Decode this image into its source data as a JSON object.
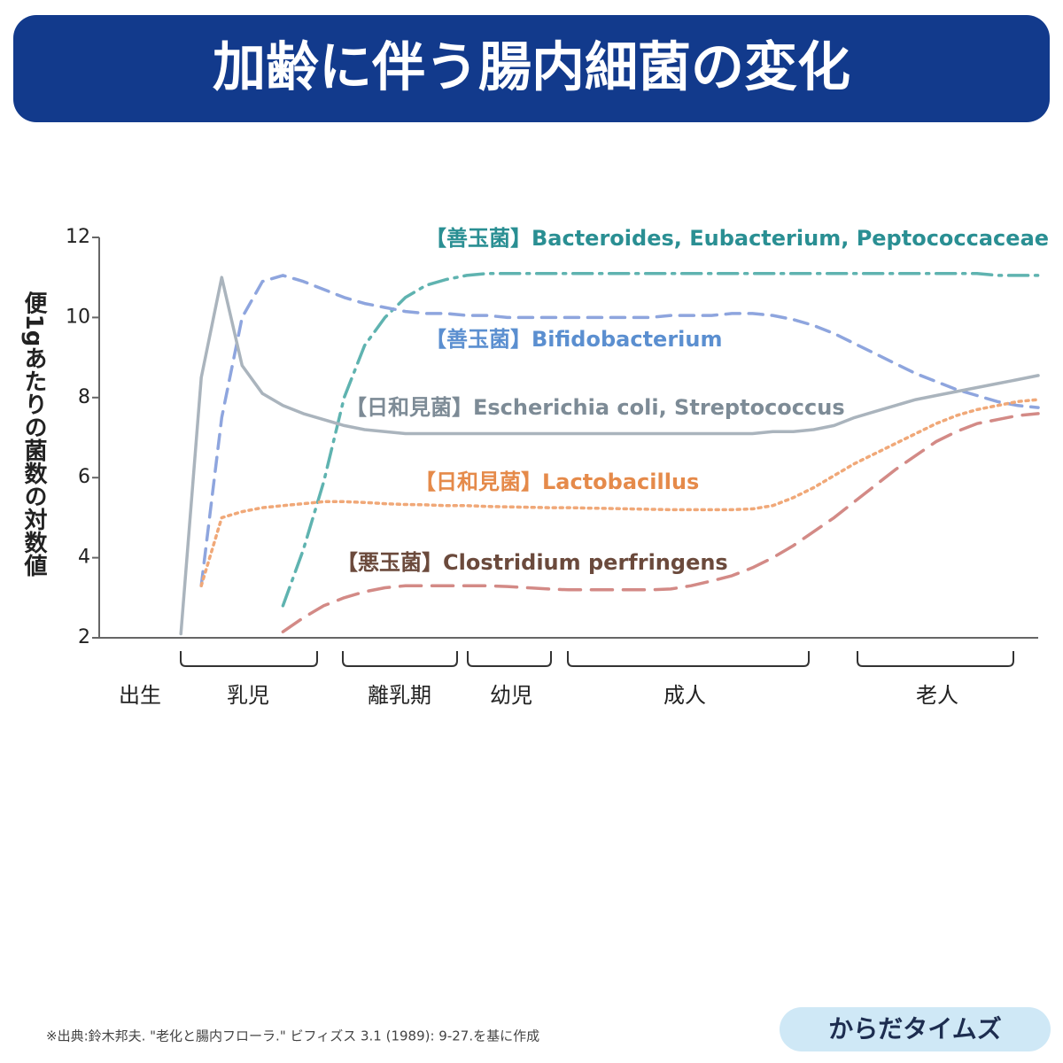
{
  "chart_data": {
    "type": "line",
    "title": "加齢に伴う腸内細菌の変化",
    "y_label": "便1gあたりの菌数の対数値",
    "ylim": [
      2,
      12
    ],
    "yticks": [
      2,
      4,
      6,
      8,
      10,
      12
    ],
    "categories": [
      null,
      null,
      null,
      null,
      null,
      null,
      null,
      null,
      null,
      null,
      null,
      null,
      null,
      null,
      null,
      null,
      null,
      null,
      null,
      null,
      null,
      null,
      null,
      null,
      null,
      null,
      null,
      null,
      null,
      null,
      null,
      null,
      null,
      null,
      null,
      null,
      null,
      null,
      null,
      null,
      null,
      null,
      null,
      null,
      null,
      null,
      null
    ],
    "series": [
      {
        "name": "【善玉菌】Bacteroides, Eubacterium, Peptococcaceae",
        "color": "#5fb3b0",
        "line_style": "dash-dot",
        "values": [
          null,
          null,
          null,
          null,
          null,
          null,
          null,
          null,
          null,
          2.8,
          4.2,
          5.9,
          8.0,
          9.3,
          10.0,
          10.5,
          10.8,
          10.95,
          11.05,
          11.1,
          11.1,
          11.1,
          11.1,
          11.1,
          11.1,
          11.1,
          11.1,
          11.1,
          11.1,
          11.1,
          11.1,
          11.1,
          11.1,
          11.1,
          11.1,
          11.1,
          11.1,
          11.1,
          11.1,
          11.1,
          11.1,
          11.1,
          11.1,
          11.1,
          11.05,
          11.05,
          11.05
        ]
      },
      {
        "name": "【善玉菌】Bifidobacterium",
        "color": "#8ea5de",
        "line_style": "dashed",
        "values": [
          null,
          null,
          null,
          null,
          null,
          3.3,
          7.5,
          10.0,
          10.9,
          11.05,
          10.9,
          10.7,
          10.5,
          10.35,
          10.25,
          10.15,
          10.1,
          10.1,
          10.05,
          10.05,
          10.0,
          10.0,
          10.0,
          10.0,
          10.0,
          10.0,
          10.0,
          10.0,
          10.05,
          10.05,
          10.05,
          10.1,
          10.1,
          10.05,
          9.95,
          9.8,
          9.6,
          9.35,
          9.1,
          8.85,
          8.6,
          8.4,
          8.2,
          8.05,
          7.9,
          7.8,
          7.75
        ]
      },
      {
        "name": "【日和見菌】Escherichia coli, Streptococcus",
        "color": "#aab4bd",
        "line_style": "solid",
        "values": [
          null,
          null,
          null,
          null,
          2.1,
          8.5,
          11.0,
          8.8,
          8.1,
          7.8,
          7.6,
          7.45,
          7.3,
          7.2,
          7.15,
          7.1,
          7.1,
          7.1,
          7.1,
          7.1,
          7.1,
          7.1,
          7.1,
          7.1,
          7.1,
          7.1,
          7.1,
          7.1,
          7.1,
          7.1,
          7.1,
          7.1,
          7.1,
          7.15,
          7.15,
          7.2,
          7.3,
          7.5,
          7.65,
          7.8,
          7.95,
          8.05,
          8.15,
          8.25,
          8.35,
          8.45,
          8.55
        ]
      },
      {
        "name": "【日和見菌】Lactobacillus",
        "color": "#f0a878",
        "line_style": "dotted",
        "values": [
          null,
          null,
          null,
          null,
          null,
          3.3,
          5.0,
          5.15,
          5.25,
          5.3,
          5.35,
          5.4,
          5.4,
          5.38,
          5.35,
          5.33,
          5.32,
          5.3,
          5.3,
          5.28,
          5.27,
          5.26,
          5.25,
          5.25,
          5.24,
          5.23,
          5.22,
          5.21,
          5.2,
          5.2,
          5.2,
          5.2,
          5.22,
          5.3,
          5.5,
          5.75,
          6.05,
          6.35,
          6.6,
          6.85,
          7.1,
          7.35,
          7.55,
          7.7,
          7.8,
          7.9,
          7.95
        ]
      },
      {
        "name": "【悪玉菌】Clostridium perfringens",
        "color": "#d38a86",
        "line_style": "long-dash",
        "values": [
          null,
          null,
          null,
          null,
          null,
          null,
          null,
          null,
          null,
          2.15,
          2.5,
          2.8,
          3.0,
          3.15,
          3.25,
          3.3,
          3.3,
          3.3,
          3.3,
          3.3,
          3.28,
          3.25,
          3.22,
          3.2,
          3.2,
          3.2,
          3.2,
          3.2,
          3.22,
          3.3,
          3.42,
          3.55,
          3.75,
          4.0,
          4.3,
          4.65,
          5.0,
          5.4,
          5.8,
          6.2,
          6.55,
          6.9,
          7.15,
          7.35,
          7.45,
          7.55,
          7.6
        ]
      }
    ],
    "stages": [
      "出生",
      "乳児",
      "離乳期",
      "幼児",
      "成人",
      "老人"
    ],
    "source": "※出典:鈴木邦夫. \"老化と腸内フローラ.\" ビフィズス 3.1 (1989): 9-27.を基に作成",
    "brand": "からだタイムズ"
  }
}
